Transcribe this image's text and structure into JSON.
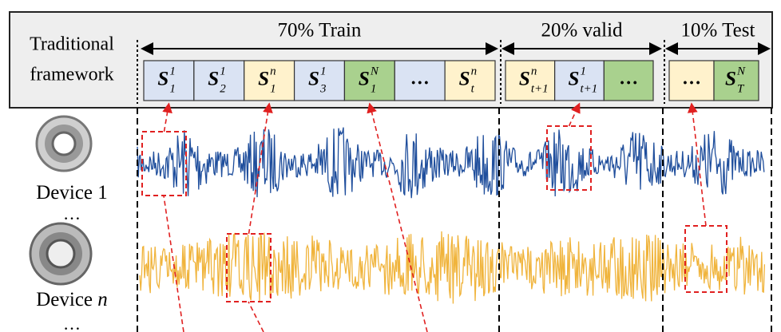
{
  "header": {
    "label_lines": [
      "Traditional",
      "framework"
    ]
  },
  "splits": [
    {
      "label": "70% Train",
      "segments": [
        {
          "base": "S",
          "sup": "1",
          "sub": "1",
          "color": "#dae3f3"
        },
        {
          "base": "S",
          "sup": "1",
          "sub": "2",
          "color": "#dae3f3"
        },
        {
          "base": "S",
          "sup": "n",
          "sub": "1",
          "color": "#fff2cc"
        },
        {
          "base": "S",
          "sup": "1",
          "sub": "3",
          "color": "#dae3f3"
        },
        {
          "base": "S",
          "sup": "N",
          "sub": "1",
          "color": "#a9d18e"
        },
        {
          "base": "…",
          "color": "#dae3f3"
        },
        {
          "base": "S",
          "sup": "n",
          "sub": "t",
          "color": "#fff2cc"
        }
      ]
    },
    {
      "label": "20% valid",
      "segments": [
        {
          "base": "S",
          "sup": "n",
          "sub": "t+1",
          "color": "#fff2cc"
        },
        {
          "base": "S",
          "sup": "1",
          "sub": "t+1",
          "color": "#dae3f3"
        },
        {
          "base": "…",
          "color": "#a9d18e"
        }
      ]
    },
    {
      "label": "10% Test",
      "segments": [
        {
          "base": "…",
          "color": "#fff2cc"
        },
        {
          "base": "S",
          "sup": "N",
          "sub": "T",
          "color": "#a9d18e"
        }
      ]
    }
  ],
  "devices": [
    {
      "text": "Device 1",
      "color": "#1f4e9c"
    },
    {
      "text": "Device",
      "var": "n",
      "color": "#f0b43c"
    }
  ],
  "ellipses": [
    "…",
    "…"
  ]
}
